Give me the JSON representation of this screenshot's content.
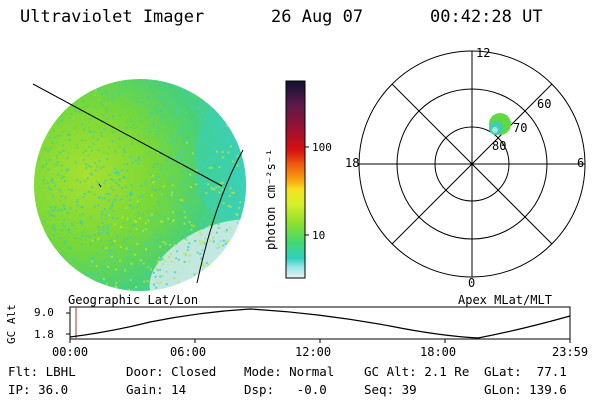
{
  "header": {
    "instrument": "Ultraviolet Imager",
    "date": "26 Aug 07",
    "time": "00:42:28 UT"
  },
  "colorbar": {
    "label": "photon cm⁻²s⁻¹",
    "ticks": [
      "100",
      "10"
    ],
    "colors": [
      "#111133",
      "#5a1a4a",
      "#a01030",
      "#d81010",
      "#f06010",
      "#f8a010",
      "#f8e020",
      "#d8f028",
      "#90e030",
      "#40d870",
      "#30d0c0",
      "#a0e8e8",
      "#e8f0f0"
    ]
  },
  "polar": {
    "mlt_labels": [
      "12",
      "18",
      "6",
      "0"
    ],
    "mlat_labels": [
      "60",
      "70",
      "80"
    ]
  },
  "timeline": {
    "left_label": "Geographic Lat/Lon",
    "right_label": "Apex MLat/MLT",
    "axis_title": "GC Alt",
    "y_ticks": [
      "9.0",
      "1.8"
    ],
    "x_ticks": [
      "00:00",
      "06:00",
      "12:00",
      "18:00",
      "23:59"
    ],
    "marker_color": "#b03030"
  },
  "status": {
    "flt": "Flt: LBHL",
    "ip": "IP: 36.0",
    "door": "Door: Closed",
    "gain": "Gain: 14",
    "mode": "Mode: Normal",
    "dsp": "Dsp:   -0.0",
    "gcalt": "GC Alt: 2.1 Re",
    "seq": "Seq: 39",
    "glat": "GLat:  77.1",
    "glon": "GLon: 139.6"
  }
}
